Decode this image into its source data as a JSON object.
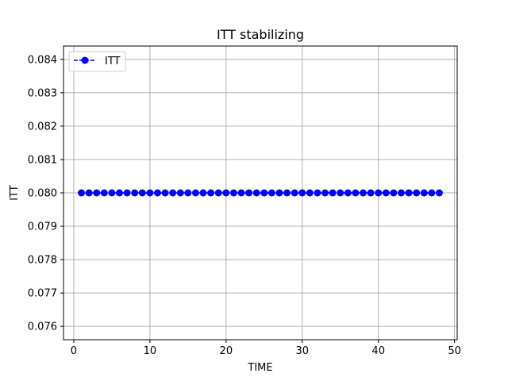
{
  "chart_data": {
    "type": "line",
    "title": "ITT stabilizing",
    "xlabel": "TIME",
    "ylabel": "ITT",
    "xlim": [
      -1.35,
      50.35
    ],
    "ylim": [
      0.0756,
      0.0844
    ],
    "xticks": [
      0,
      10,
      20,
      30,
      40,
      50
    ],
    "yticks": [
      0.076,
      0.077,
      0.078,
      0.079,
      0.08,
      0.081,
      0.082,
      0.083,
      0.084
    ],
    "ytick_labels": [
      "0.076",
      "0.077",
      "0.078",
      "0.079",
      "0.080",
      "0.081",
      "0.082",
      "0.083",
      "0.084"
    ],
    "grid": true,
    "legend_position": "upper-left",
    "series": [
      {
        "name": "ITT",
        "color": "#0000ff",
        "linestyle": "dashed",
        "marker": "circle",
        "x": [
          1,
          2,
          3,
          4,
          5,
          6,
          7,
          8,
          9,
          10,
          11,
          12,
          13,
          14,
          15,
          16,
          17,
          18,
          19,
          20,
          21,
          22,
          23,
          24,
          25,
          26,
          27,
          28,
          29,
          30,
          31,
          32,
          33,
          34,
          35,
          36,
          37,
          38,
          39,
          40,
          41,
          42,
          43,
          44,
          45,
          46,
          47,
          48
        ],
        "y": [
          0.08,
          0.08,
          0.08,
          0.08,
          0.08,
          0.08,
          0.08,
          0.08,
          0.08,
          0.08,
          0.08,
          0.08,
          0.08,
          0.08,
          0.08,
          0.08,
          0.08,
          0.08,
          0.08,
          0.08,
          0.08,
          0.08,
          0.08,
          0.08,
          0.08,
          0.08,
          0.08,
          0.08,
          0.08,
          0.08,
          0.08,
          0.08,
          0.08,
          0.08,
          0.08,
          0.08,
          0.08,
          0.08,
          0.08,
          0.08,
          0.08,
          0.08,
          0.08,
          0.08,
          0.08,
          0.08,
          0.08,
          0.08
        ]
      }
    ]
  }
}
